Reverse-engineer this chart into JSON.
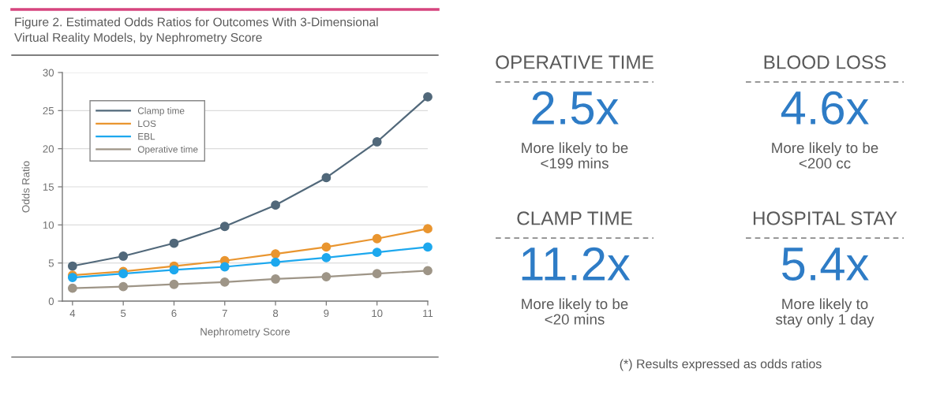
{
  "chart_data": [
    {
      "type": "line",
      "title": "Figure 2. Estimated Odds Ratios for Outcomes With 3-Dimensional\nVirtual Reality Models, by Nephrometry Score",
      "xlabel": "Nephrometry Score",
      "ylabel": "Odds Ratio",
      "x": [
        4,
        5,
        6,
        7,
        8,
        9,
        10,
        11
      ],
      "series": [
        {
          "name": "Clamp time",
          "color": "#51687a",
          "values": [
            4.6,
            5.9,
            7.6,
            9.8,
            12.6,
            16.2,
            20.9,
            26.8
          ]
        },
        {
          "name": "LOS",
          "color": "#e9952f",
          "values": [
            3.4,
            3.9,
            4.6,
            5.3,
            6.2,
            7.1,
            8.2,
            9.5
          ]
        },
        {
          "name": "EBL",
          "color": "#1da8ee",
          "values": [
            3.1,
            3.6,
            4.1,
            4.5,
            5.1,
            5.7,
            6.4,
            7.1
          ]
        },
        {
          "name": "Operative time",
          "color": "#9e9587",
          "values": [
            1.7,
            1.9,
            2.2,
            2.5,
            2.9,
            3.2,
            3.6,
            4.0
          ]
        }
      ],
      "xlim": [
        3.8,
        11
      ],
      "ylim": [
        0,
        30
      ],
      "xticks": [
        4,
        5,
        6,
        7,
        8,
        9,
        10,
        11
      ],
      "yticks": [
        0,
        5,
        10,
        15,
        20,
        25,
        30
      ],
      "grid": "y",
      "legend": "top left",
      "marker": "circle",
      "line_style": "solid"
    },
    {
      "type": "other",
      "annotations": [
        "OPERATIVE TIME",
        "2.5x",
        "More likely to be\n<199 mins",
        "BLOOD LOSS",
        "4.6x",
        "More likely to be\n<200 cc",
        "CLAMP TIME",
        "11.2x",
        "More likely to be\n<20 mins",
        "HOSPITAL STAY",
        "5.4x",
        "More likely to\nstay only 1 day",
        "(*) Results expressed as odds ratios"
      ]
    }
  ]
}
